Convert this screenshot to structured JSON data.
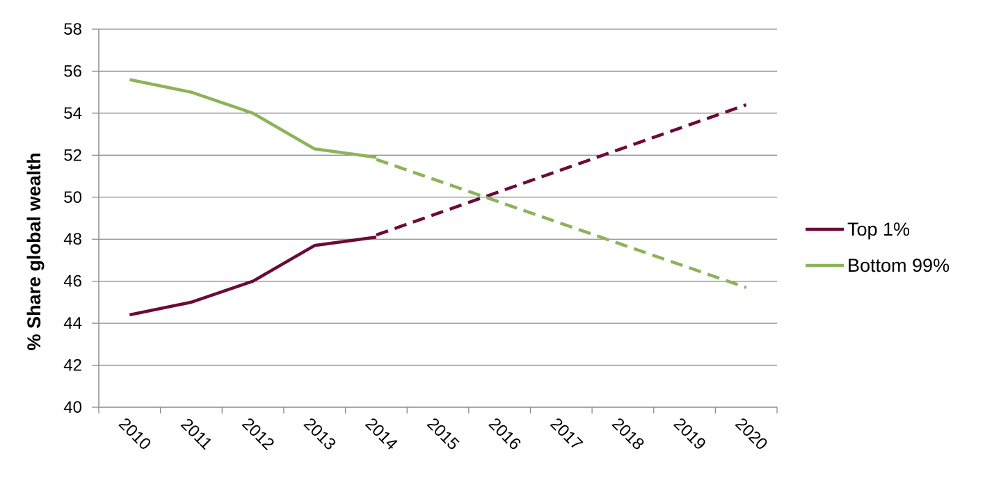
{
  "chart_data": {
    "type": "line",
    "title": "",
    "xlabel": "",
    "ylabel": "% Share global wealth",
    "ylim": [
      40,
      58
    ],
    "yticks": [
      40,
      42,
      44,
      46,
      48,
      50,
      52,
      54,
      56,
      58
    ],
    "categories": [
      "2010",
      "2011",
      "2012",
      "2013",
      "2014",
      "2015",
      "2016",
      "2017",
      "2018",
      "2019",
      "2020"
    ],
    "grid": true,
    "legend_position": "right",
    "series": [
      {
        "name": "Top 1%",
        "color": "#6B0A3A",
        "actual": {
          "x": [
            "2010",
            "2011",
            "2012",
            "2013",
            "2014"
          ],
          "values": [
            44.4,
            45.0,
            46.0,
            47.7,
            48.1
          ]
        },
        "projected": {
          "x": [
            "2014",
            "2020"
          ],
          "values": [
            48.2,
            54.4
          ]
        }
      },
      {
        "name": "Bottom 99%",
        "color": "#8DB35A",
        "actual": {
          "x": [
            "2010",
            "2011",
            "2012",
            "2013",
            "2014"
          ],
          "values": [
            55.6,
            55.0,
            54.0,
            52.3,
            51.9
          ]
        },
        "projected": {
          "x": [
            "2014",
            "2020"
          ],
          "values": [
            51.8,
            45.7
          ]
        }
      }
    ]
  }
}
